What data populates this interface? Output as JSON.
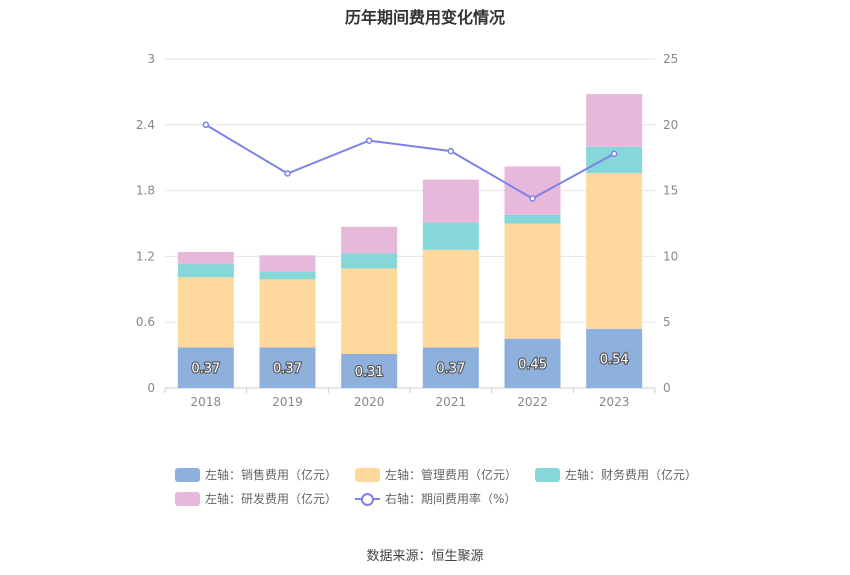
{
  "title": "历年期间费用变化情况",
  "source": "数据来源：恒生聚源",
  "colors": {
    "sales": "#8eb0dc",
    "mgmt": "#ffd89d",
    "finance": "#86d7da",
    "rnd": "#e8b8da",
    "rate": "#7b82e8"
  },
  "legend": [
    {
      "label": "左轴：销售费用（亿元）",
      "key": "sales"
    },
    {
      "label": "左轴：管理费用（亿元）",
      "key": "mgmt"
    },
    {
      "label": "左轴：财务费用（亿元）",
      "key": "finance"
    },
    {
      "label": "左轴：研发费用（亿元）",
      "key": "rnd"
    },
    {
      "label": "右轴：期间费用率（%）",
      "key": "rate"
    }
  ],
  "chart_data": {
    "type": "bar",
    "title": "历年期间费用变化情况",
    "categories": [
      "2018",
      "2019",
      "2020",
      "2021",
      "2022",
      "2023"
    ],
    "y_left": {
      "ticks": [
        "0",
        "0.6",
        "1.2",
        "1.8",
        "2.4",
        "3"
      ],
      "ylim": [
        0,
        3
      ]
    },
    "y_right": {
      "ticks": [
        "0",
        "5",
        "10",
        "15",
        "20",
        "25"
      ],
      "ylim": [
        0,
        25
      ]
    },
    "grid": true,
    "legend_position": "bottom",
    "series": [
      {
        "name": "左轴：销售费用（亿元）",
        "key": "sales",
        "type": "bar",
        "axis": "left",
        "values": [
          0.37,
          0.37,
          0.31,
          0.37,
          0.45,
          0.54
        ],
        "labels": [
          "0.37",
          "0.37",
          "0.31",
          "0.37",
          "0.45",
          "0.54"
        ]
      },
      {
        "name": "左轴：管理费用（亿元）",
        "key": "mgmt",
        "type": "bar",
        "axis": "left",
        "values": [
          0.64,
          0.62,
          0.78,
          0.89,
          1.05,
          1.42
        ]
      },
      {
        "name": "左轴：财务费用（亿元）",
        "key": "finance",
        "type": "bar",
        "axis": "left",
        "values": [
          0.12,
          0.07,
          0.14,
          0.25,
          0.08,
          0.24
        ]
      },
      {
        "name": "左轴：研发费用（亿元）",
        "key": "rnd",
        "type": "bar",
        "axis": "left",
        "values": [
          0.11,
          0.15,
          0.24,
          0.39,
          0.44,
          0.48
        ]
      },
      {
        "name": "右轴：期间费用率（%）",
        "key": "rate",
        "type": "line",
        "axis": "right",
        "values": [
          20.0,
          16.3,
          18.8,
          18.0,
          14.4,
          17.8
        ]
      }
    ]
  }
}
